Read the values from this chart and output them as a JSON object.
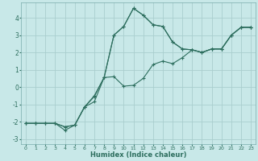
{
  "xlabel": "Humidex (Indice chaleur)",
  "background_color": "#c8e8e8",
  "grid_color": "#aacece",
  "line_color": "#2d6e5e",
  "xlim": [
    -0.5,
    23.5
  ],
  "ylim": [
    -3.3,
    4.9
  ],
  "xticks": [
    0,
    1,
    2,
    3,
    4,
    5,
    6,
    7,
    8,
    9,
    10,
    11,
    12,
    13,
    14,
    15,
    16,
    17,
    18,
    19,
    20,
    21,
    22,
    23
  ],
  "yticks": [
    -3,
    -2,
    -1,
    0,
    1,
    2,
    3,
    4
  ],
  "series1_x": [
    0,
    1,
    2,
    3,
    4,
    5,
    6,
    7,
    8,
    9,
    10,
    11,
    12,
    13,
    14,
    15,
    16,
    17,
    18,
    19,
    20,
    21,
    22,
    23
  ],
  "series1_y": [
    -2.1,
    -2.1,
    -2.1,
    -2.1,
    -2.3,
    -2.2,
    -1.15,
    -0.55,
    0.55,
    0.6,
    0.05,
    0.1,
    0.5,
    1.3,
    1.5,
    1.35,
    1.7,
    2.15,
    2.0,
    2.2,
    2.2,
    3.0,
    3.45,
    3.45
  ],
  "series2_x": [
    0,
    1,
    2,
    3,
    4,
    5,
    6,
    7,
    8,
    9,
    10,
    11,
    12,
    13,
    14,
    15,
    16,
    17,
    18,
    19,
    20,
    21,
    22,
    23
  ],
  "series2_y": [
    -2.1,
    -2.1,
    -2.1,
    -2.1,
    -2.5,
    -2.2,
    -1.15,
    -0.85,
    0.55,
    3.0,
    3.5,
    4.55,
    4.15,
    3.6,
    3.5,
    2.6,
    2.2,
    2.15,
    2.0,
    2.2,
    2.2,
    3.0,
    3.45,
    3.45
  ],
  "series3_x": [
    0,
    1,
    2,
    3,
    4,
    5,
    6,
    7,
    8,
    9,
    10,
    11,
    12,
    13,
    14,
    15,
    16,
    17,
    18,
    19,
    20,
    21,
    22,
    23
  ],
  "series3_y": [
    -2.1,
    -2.1,
    -2.1,
    -2.1,
    -2.3,
    -2.2,
    -1.15,
    -0.5,
    0.55,
    3.0,
    3.5,
    4.55,
    4.15,
    3.6,
    3.5,
    2.6,
    2.2,
    2.15,
    2.0,
    2.2,
    2.2,
    3.0,
    3.45,
    3.45
  ]
}
